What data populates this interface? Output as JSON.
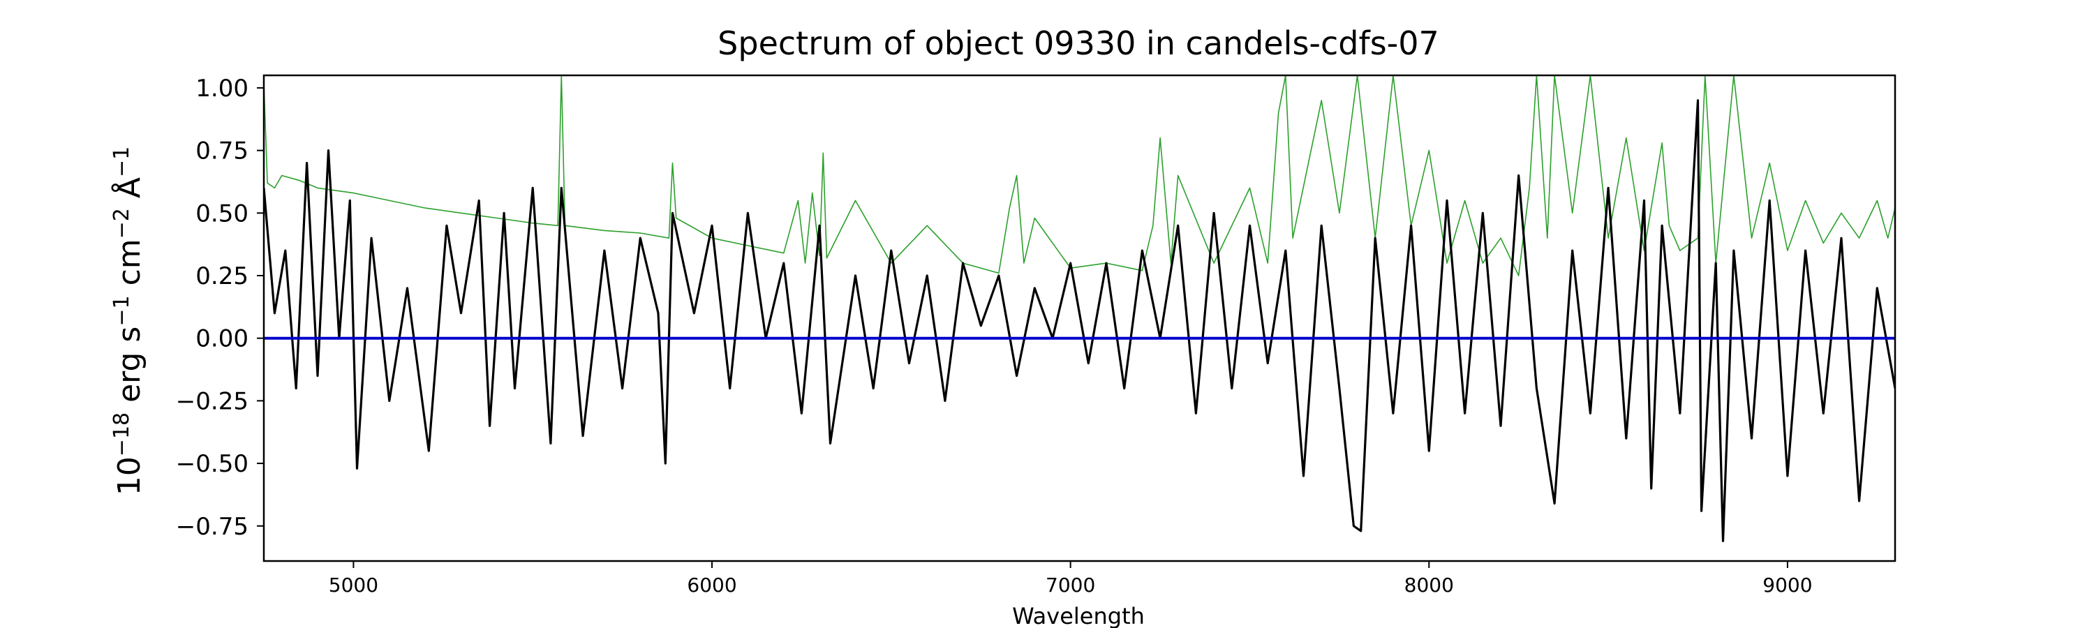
{
  "chart_data": {
    "type": "line",
    "title": "Spectrum of object 09330 in candels-cdfs-07",
    "xlabel": "Wavelength",
    "ylabel_parts": [
      "10",
      "−18",
      " erg s",
      "−1",
      " cm",
      "−2",
      " Å",
      "−1"
    ],
    "xlim": [
      4750,
      9300
    ],
    "ylim": [
      -0.89,
      1.05
    ],
    "xticks": [
      5000,
      6000,
      7000,
      8000,
      9000
    ],
    "xtick_labels": [
      "5000",
      "6000",
      "7000",
      "8000",
      "9000"
    ],
    "yticks": [
      -0.75,
      -0.5,
      -0.25,
      0.0,
      0.25,
      0.5,
      0.75,
      1.0
    ],
    "ytick_labels": [
      "−0.75",
      "−0.50",
      "−0.25",
      "0.00",
      "0.25",
      "0.50",
      "0.75",
      "1.00"
    ],
    "grid": false,
    "colors": {
      "flux": "#000000",
      "error": "#2ca02c",
      "zero": "#0000cc"
    },
    "series": [
      {
        "role": "flux",
        "x": [
          4750,
          4780,
          4810,
          4840,
          4870,
          4900,
          4930,
          4960,
          4990,
          5010,
          5050,
          5100,
          5150,
          5210,
          5260,
          5300,
          5350,
          5380,
          5420,
          5450,
          5500,
          5550,
          5580,
          5640,
          5700,
          5750,
          5800,
          5850,
          5870,
          5890,
          5950,
          6000,
          6050,
          6100,
          6150,
          6200,
          6250,
          6300,
          6330,
          6400,
          6450,
          6500,
          6550,
          6600,
          6650,
          6700,
          6750,
          6800,
          6850,
          6900,
          6950,
          7000,
          7050,
          7100,
          7150,
          7200,
          7250,
          7300,
          7350,
          7400,
          7450,
          7500,
          7550,
          7600,
          7650,
          7700,
          7750,
          7790,
          7810,
          7850,
          7900,
          7950,
          8000,
          8050,
          8100,
          8150,
          8200,
          8250,
          8300,
          8350,
          8400,
          8450,
          8500,
          8550,
          8600,
          8620,
          8650,
          8700,
          8750,
          8760,
          8800,
          8820,
          8850,
          8900,
          8950,
          9000,
          9050,
          9100,
          9150,
          9200,
          9250,
          9300
        ],
        "y": [
          0.6,
          0.1,
          0.35,
          -0.2,
          0.7,
          -0.15,
          0.75,
          0.0,
          0.55,
          -0.52,
          0.4,
          -0.25,
          0.2,
          -0.45,
          0.45,
          0.1,
          0.55,
          -0.35,
          0.5,
          -0.2,
          0.6,
          -0.42,
          0.6,
          -0.39,
          0.35,
          -0.2,
          0.4,
          0.1,
          -0.5,
          0.5,
          0.1,
          0.45,
          -0.2,
          0.5,
          0.0,
          0.3,
          -0.3,
          0.45,
          -0.42,
          0.25,
          -0.2,
          0.35,
          -0.1,
          0.25,
          -0.25,
          0.3,
          0.05,
          0.25,
          -0.15,
          0.2,
          0.0,
          0.3,
          -0.1,
          0.3,
          -0.2,
          0.35,
          0.0,
          0.45,
          -0.3,
          0.5,
          -0.2,
          0.45,
          -0.1,
          0.35,
          -0.55,
          0.45,
          -0.2,
          -0.75,
          -0.77,
          0.4,
          -0.3,
          0.45,
          -0.45,
          0.55,
          -0.3,
          0.5,
          -0.35,
          0.65,
          -0.2,
          -0.66,
          0.35,
          -0.3,
          0.6,
          -0.4,
          0.55,
          -0.6,
          0.45,
          -0.3,
          0.95,
          -0.69,
          0.3,
          -0.81,
          0.35,
          -0.4,
          0.55,
          -0.55,
          0.35,
          -0.3,
          0.4,
          -0.65,
          0.2,
          -0.2
        ]
      },
      {
        "role": "error",
        "x": [
          4750,
          4760,
          4780,
          4800,
          4850,
          4900,
          5000,
          5100,
          5200,
          5300,
          5400,
          5500,
          5570,
          5580,
          5590,
          5700,
          5800,
          5880,
          5890,
          5900,
          6000,
          6100,
          6200,
          6240,
          6260,
          6280,
          6300,
          6310,
          6320,
          6400,
          6500,
          6600,
          6700,
          6800,
          6830,
          6850,
          6870,
          6900,
          7000,
          7100,
          7200,
          7230,
          7250,
          7280,
          7300,
          7400,
          7500,
          7550,
          7580,
          7600,
          7620,
          7700,
          7750,
          7800,
          7850,
          7900,
          7950,
          8000,
          8050,
          8100,
          8150,
          8200,
          8250,
          8280,
          8300,
          8330,
          8350,
          8400,
          8450,
          8500,
          8550,
          8600,
          8650,
          8670,
          8700,
          8750,
          8770,
          8800,
          8850,
          8900,
          8950,
          9000,
          9050,
          9100,
          9150,
          9200,
          9250,
          9280,
          9300
        ],
        "y": [
          1.02,
          0.62,
          0.6,
          0.65,
          0.63,
          0.6,
          0.58,
          0.55,
          0.52,
          0.5,
          0.48,
          0.46,
          0.45,
          1.05,
          0.45,
          0.43,
          0.42,
          0.4,
          0.7,
          0.48,
          0.4,
          0.37,
          0.34,
          0.55,
          0.3,
          0.58,
          0.33,
          0.74,
          0.32,
          0.55,
          0.3,
          0.45,
          0.3,
          0.26,
          0.52,
          0.65,
          0.3,
          0.48,
          0.28,
          0.3,
          0.27,
          0.45,
          0.8,
          0.3,
          0.65,
          0.3,
          0.6,
          0.3,
          0.9,
          1.05,
          0.4,
          0.95,
          0.5,
          1.05,
          0.4,
          1.05,
          0.45,
          0.75,
          0.3,
          0.55,
          0.3,
          0.4,
          0.25,
          0.6,
          1.05,
          0.4,
          1.05,
          0.5,
          1.05,
          0.4,
          0.8,
          0.35,
          0.78,
          0.45,
          0.35,
          0.4,
          1.05,
          0.3,
          1.05,
          0.4,
          0.7,
          0.35,
          0.55,
          0.38,
          0.5,
          0.4,
          0.55,
          0.4,
          0.52
        ]
      }
    ],
    "hline": {
      "y": 0.0
    }
  }
}
